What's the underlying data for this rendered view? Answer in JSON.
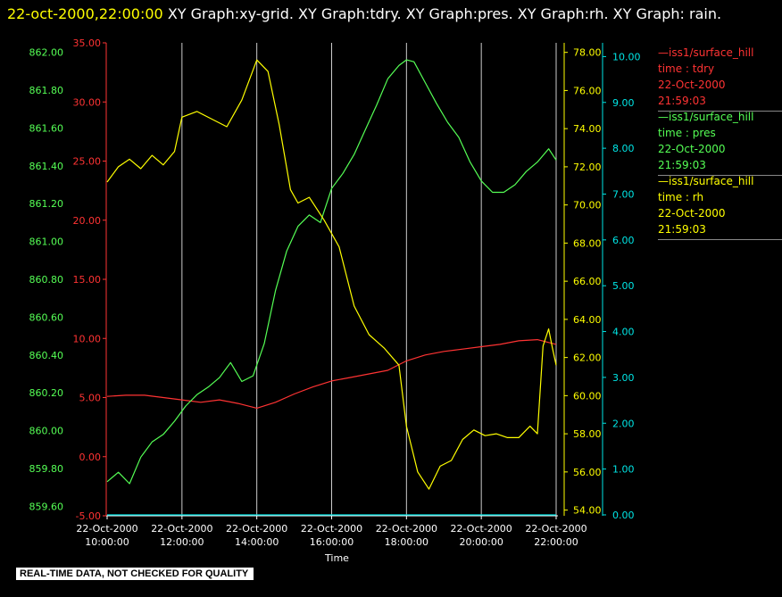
{
  "header": {
    "timestamp": "22-oct-2000,22:00:00",
    "title": "XY Graph:xy-grid.  XY Graph:tdry.  XY Graph:pres.  XY Graph:rh.  XY Graph: rain."
  },
  "legend": [
    {
      "station": "—iss1/surface_hill",
      "var": "time : tdry",
      "date": "22-Oct-2000",
      "time": "21:59:03",
      "color": "#ff3333"
    },
    {
      "station": "—iss1/surface_hill",
      "var": "time : pres",
      "date": "22-Oct-2000",
      "time": "21:59:03",
      "color": "#55ff55"
    },
    {
      "station": "—iss1/surface_hill",
      "var": "time : rh",
      "date": "22-Oct-2000",
      "time": "21:59:03",
      "color": "#ffff00"
    }
  ],
  "footer": "REAL-TIME DATA, NOT CHECKED FOR QUALITY",
  "colors": {
    "tdry": "#ff3333",
    "pres": "#55ff55",
    "rh": "#ffff00",
    "rain": "#00e5e5",
    "grid": "#ffffff"
  },
  "chart_data": {
    "type": "line",
    "xlabel": "Time",
    "xlim": [
      10,
      22
    ],
    "grid": true,
    "x_ticks": [
      {
        "date": "22-Oct-2000",
        "time": "10:00:00",
        "x": 10
      },
      {
        "date": "22-Oct-2000",
        "time": "12:00:00",
        "x": 12
      },
      {
        "date": "22-Oct-2000",
        "time": "14:00:00",
        "x": 14
      },
      {
        "date": "22-Oct-2000",
        "time": "16:00:00",
        "x": 16
      },
      {
        "date": "22-Oct-2000",
        "time": "18:00:00",
        "x": 18
      },
      {
        "date": "22-Oct-2000",
        "time": "20:00:00",
        "x": 20
      },
      {
        "date": "22-Oct-2000",
        "time": "22:00:00",
        "x": 22
      }
    ],
    "axes": {
      "pres": {
        "side": "left",
        "ylim": [
          859.55,
          862.05
        ],
        "ticks": [
          "862.00",
          "861.80",
          "861.60",
          "861.40",
          "861.20",
          "861.00",
          "860.80",
          "860.60",
          "860.40",
          "860.20",
          "860.00",
          "859.80",
          "859.60"
        ]
      },
      "tdry": {
        "side": "left",
        "ylim": [
          -5,
          35
        ],
        "ticks": [
          "35.00",
          "30.00",
          "25.00",
          "20.00",
          "15.00",
          "10.00",
          "5.00",
          "0.00",
          "-5.00"
        ]
      },
      "rh": {
        "side": "right",
        "ylim": [
          53.7,
          78.5
        ],
        "ticks": [
          "78.00",
          "76.00",
          "74.00",
          "72.00",
          "70.00",
          "68.00",
          "66.00",
          "64.00",
          "62.00",
          "60.00",
          "58.00",
          "56.00",
          "54.00"
        ]
      },
      "rain": {
        "side": "right",
        "ylim": [
          -0.02,
          10.3
        ],
        "ticks": [
          "10.00",
          "9.00",
          "8.00",
          "7.00",
          "6.00",
          "5.00",
          "4.00",
          "3.00",
          "2.00",
          "1.00",
          "0.00"
        ]
      }
    },
    "series": [
      {
        "key": "tdry",
        "x": [
          10,
          10.5,
          11,
          11.5,
          12,
          12.5,
          13,
          13.5,
          14,
          14.5,
          15,
          15.5,
          16,
          16.5,
          17,
          17.5,
          18,
          18.5,
          19,
          19.5,
          20,
          20.5,
          21,
          21.5,
          22
        ],
        "values": [
          5.1,
          5.2,
          5.2,
          5.0,
          4.8,
          4.6,
          4.8,
          4.5,
          4.1,
          4.6,
          5.3,
          5.9,
          6.4,
          6.7,
          7.0,
          7.3,
          8.1,
          8.6,
          8.9,
          9.1,
          9.3,
          9.5,
          9.8,
          9.9,
          9.5
        ]
      },
      {
        "key": "pres",
        "x": [
          10,
          10.3,
          10.6,
          10.9,
          11.2,
          11.5,
          11.8,
          12.1,
          12.4,
          12.7,
          13,
          13.3,
          13.6,
          13.9,
          14.2,
          14.5,
          14.8,
          15.1,
          15.4,
          15.7,
          16,
          16.3,
          16.6,
          16.9,
          17.2,
          17.5,
          17.8,
          18,
          18.2,
          18.5,
          18.8,
          19.1,
          19.4,
          19.7,
          20,
          20.3,
          20.6,
          20.9,
          21.2,
          21.5,
          21.8,
          22
        ],
        "values": [
          859.73,
          859.78,
          859.72,
          859.86,
          859.94,
          859.98,
          860.05,
          860.13,
          860.19,
          860.23,
          860.28,
          860.36,
          860.26,
          860.29,
          860.46,
          860.74,
          860.95,
          861.08,
          861.14,
          861.1,
          861.28,
          861.36,
          861.46,
          861.59,
          861.72,
          861.86,
          861.93,
          861.96,
          861.95,
          861.84,
          861.73,
          861.63,
          861.55,
          861.42,
          861.32,
          861.26,
          861.26,
          861.3,
          861.37,
          861.42,
          861.49,
          861.43
        ]
      },
      {
        "key": "rh",
        "x": [
          10,
          10.3,
          10.6,
          10.9,
          11.2,
          11.5,
          11.8,
          12,
          12.4,
          12.8,
          13.2,
          13.6,
          14,
          14.3,
          14.6,
          14.9,
          15.1,
          15.4,
          15.8,
          16.2,
          16.6,
          17,
          17.4,
          17.8,
          18,
          18.3,
          18.6,
          18.9,
          19.2,
          19.5,
          19.8,
          20.1,
          20.4,
          20.7,
          21,
          21.3,
          21.5,
          21.65,
          21.8,
          21.9,
          22
        ],
        "values": [
          71.2,
          72.0,
          72.4,
          71.9,
          72.6,
          72.1,
          72.8,
          74.6,
          74.9,
          74.5,
          74.1,
          75.5,
          77.6,
          77.0,
          74.2,
          70.8,
          70.1,
          70.4,
          69.2,
          67.8,
          64.7,
          63.2,
          62.5,
          61.6,
          58.4,
          56.0,
          55.1,
          56.3,
          56.6,
          57.7,
          58.2,
          57.9,
          58.0,
          57.8,
          57.8,
          58.4,
          58.0,
          62.6,
          63.5,
          62.5,
          61.6
        ]
      },
      {
        "key": "rain",
        "x": [
          10,
          22
        ],
        "values": [
          0,
          0
        ]
      }
    ]
  }
}
